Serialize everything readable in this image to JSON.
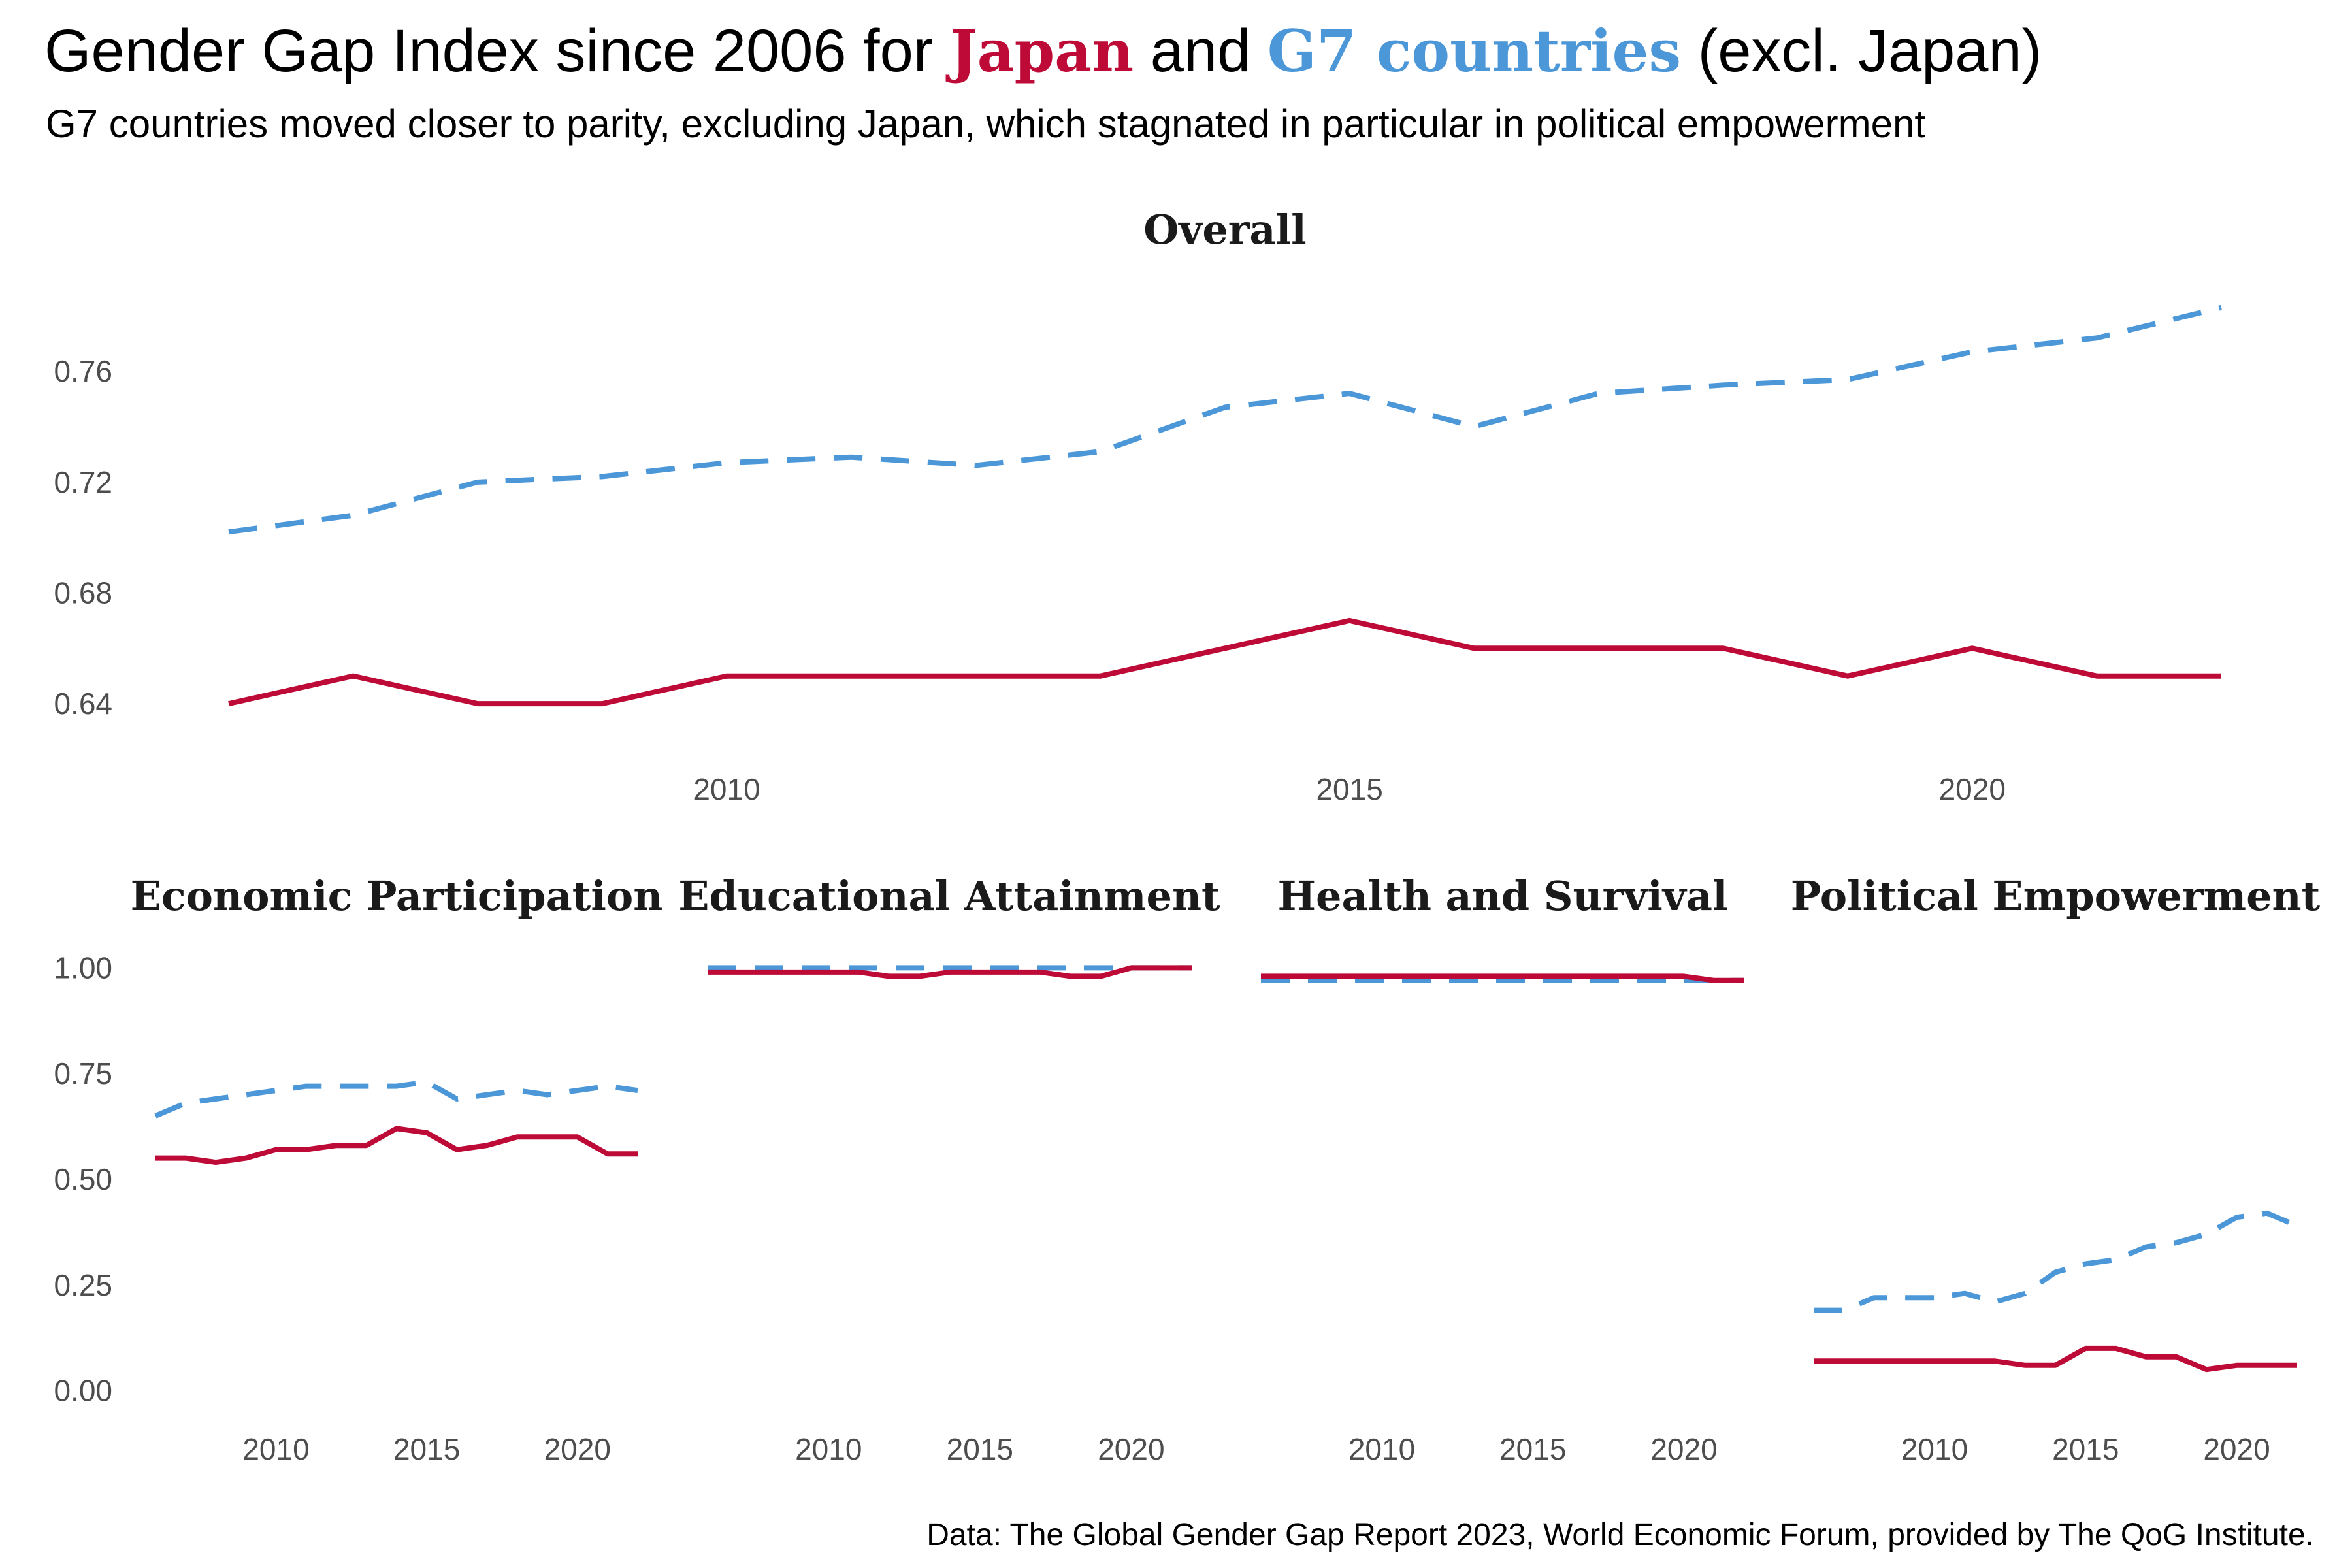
{
  "header": {
    "title_pre": "Gender Gap Index since 2006 for ",
    "title_japan": "Japan",
    "title_mid": " and ",
    "title_g7": "G7 countries",
    "title_post": " (excl. Japan)",
    "subtitle": "G7 countries moved closer to parity, excluding Japan, which stagnated in particular in political empowerment"
  },
  "caption": "Data: The Global Gender Gap Report 2023, World Economic Forum, provided by The QoG Institute.",
  "colors": {
    "japan": "#BD0A36",
    "g7": "#4C97D8",
    "tick_text": "#4d4d4d",
    "facet_title": "#1a1a1a"
  },
  "chart_data": [
    {
      "type": "line",
      "title": "Overall",
      "xlabel": "",
      "ylabel": "",
      "xlim": [
        2006,
        2022
      ],
      "ylim": [
        0.628,
        0.79
      ],
      "xticks": [
        2010,
        2015,
        2020
      ],
      "yticks": [
        0.64,
        0.68,
        0.72,
        0.76
      ],
      "ytick_labels": [
        "0.64",
        "0.68",
        "0.72",
        "0.76"
      ],
      "grid": false,
      "x": [
        2006,
        2007,
        2008,
        2009,
        2010,
        2011,
        2012,
        2013,
        2014,
        2015,
        2016,
        2017,
        2018,
        2020,
        2021,
        2022,
        2023
      ],
      "series": [
        {
          "name": "G7 countries",
          "line_style": "dashed",
          "values": [
            0.702,
            0.708,
            0.72,
            0.722,
            0.727,
            0.729,
            0.726,
            0.731,
            0.747,
            0.752,
            0.74,
            0.752,
            0.755,
            0.757,
            0.767,
            0.772,
            0.783
          ]
        },
        {
          "name": "Japan",
          "line_style": "solid",
          "values": [
            0.64,
            0.65,
            0.64,
            0.64,
            0.65,
            0.65,
            0.65,
            0.65,
            0.66,
            0.67,
            0.66,
            0.66,
            0.66,
            0.65,
            0.66,
            0.65,
            0.65
          ]
        }
      ]
    },
    {
      "type": "line",
      "title": "Economic Participation",
      "xlim": [
        2006,
        2022
      ],
      "ylim": [
        -0.03,
        1.03
      ],
      "xticks": [
        2010,
        2015,
        2020
      ],
      "yticks": [
        0,
        0.25,
        0.5,
        0.75,
        1.0
      ],
      "ytick_labels": [
        "0.00",
        "0.25",
        "0.50",
        "0.75",
        "1.00"
      ],
      "x": [
        2006,
        2007,
        2008,
        2009,
        2010,
        2011,
        2012,
        2013,
        2014,
        2015,
        2016,
        2017,
        2018,
        2020,
        2021,
        2022,
        2023
      ],
      "series": [
        {
          "name": "G7 countries",
          "line_style": "dashed",
          "values": [
            0.65,
            0.68,
            0.69,
            0.7,
            0.71,
            0.72,
            0.72,
            0.72,
            0.72,
            0.73,
            0.69,
            0.7,
            0.71,
            0.7,
            0.71,
            0.72,
            0.71
          ]
        },
        {
          "name": "Japan",
          "line_style": "solid",
          "values": [
            0.55,
            0.55,
            0.54,
            0.55,
            0.57,
            0.57,
            0.58,
            0.58,
            0.62,
            0.61,
            0.57,
            0.58,
            0.6,
            0.6,
            0.6,
            0.56,
            0.56
          ]
        }
      ]
    },
    {
      "type": "line",
      "title": "Educational Attainment",
      "xlim": [
        2006,
        2022
      ],
      "ylim": [
        -0.03,
        1.03
      ],
      "xticks": [
        2010,
        2015,
        2020
      ],
      "x": [
        2006,
        2007,
        2008,
        2009,
        2010,
        2011,
        2012,
        2013,
        2014,
        2015,
        2016,
        2017,
        2018,
        2020,
        2021,
        2022,
        2023
      ],
      "series": [
        {
          "name": "G7 countries",
          "line_style": "dashed",
          "values": [
            1.0,
            1.0,
            1.0,
            1.0,
            1.0,
            1.0,
            1.0,
            1.0,
            1.0,
            1.0,
            1.0,
            1.0,
            1.0,
            1.0,
            1.0,
            1.0,
            1.0
          ]
        },
        {
          "name": "Japan",
          "line_style": "solid",
          "values": [
            0.99,
            0.99,
            0.99,
            0.99,
            0.99,
            0.99,
            0.98,
            0.98,
            0.99,
            0.99,
            0.99,
            0.99,
            0.98,
            0.98,
            1.0,
            1.0,
            1.0
          ]
        }
      ]
    },
    {
      "type": "line",
      "title": "Health and Survival",
      "xlim": [
        2006,
        2022
      ],
      "ylim": [
        -0.03,
        1.03
      ],
      "xticks": [
        2010,
        2015,
        2020
      ],
      "x": [
        2006,
        2007,
        2008,
        2009,
        2010,
        2011,
        2012,
        2013,
        2014,
        2015,
        2016,
        2017,
        2018,
        2020,
        2021,
        2022,
        2023
      ],
      "series": [
        {
          "name": "G7 countries",
          "line_style": "dashed",
          "values": [
            0.97,
            0.97,
            0.97,
            0.97,
            0.97,
            0.97,
            0.97,
            0.97,
            0.97,
            0.97,
            0.97,
            0.97,
            0.97,
            0.97,
            0.97,
            0.97,
            0.97
          ]
        },
        {
          "name": "Japan",
          "line_style": "solid",
          "values": [
            0.98,
            0.98,
            0.98,
            0.98,
            0.98,
            0.98,
            0.98,
            0.98,
            0.98,
            0.98,
            0.98,
            0.98,
            0.98,
            0.98,
            0.98,
            0.97,
            0.97
          ]
        }
      ]
    },
    {
      "type": "line",
      "title": "Political Empowerment",
      "xlim": [
        2006,
        2022
      ],
      "ylim": [
        -0.03,
        1.03
      ],
      "xticks": [
        2010,
        2015,
        2020
      ],
      "x": [
        2006,
        2007,
        2008,
        2009,
        2010,
        2011,
        2012,
        2013,
        2014,
        2015,
        2016,
        2017,
        2018,
        2020,
        2021,
        2022,
        2023
      ],
      "series": [
        {
          "name": "G7 countries",
          "line_style": "dashed",
          "values": [
            0.19,
            0.19,
            0.22,
            0.22,
            0.22,
            0.23,
            0.21,
            0.23,
            0.28,
            0.3,
            0.31,
            0.34,
            0.35,
            0.37,
            0.41,
            0.42,
            0.39
          ]
        },
        {
          "name": "Japan",
          "line_style": "solid",
          "values": [
            0.07,
            0.07,
            0.07,
            0.07,
            0.07,
            0.07,
            0.07,
            0.06,
            0.06,
            0.1,
            0.1,
            0.08,
            0.08,
            0.05,
            0.06,
            0.06,
            0.06
          ]
        }
      ]
    }
  ]
}
